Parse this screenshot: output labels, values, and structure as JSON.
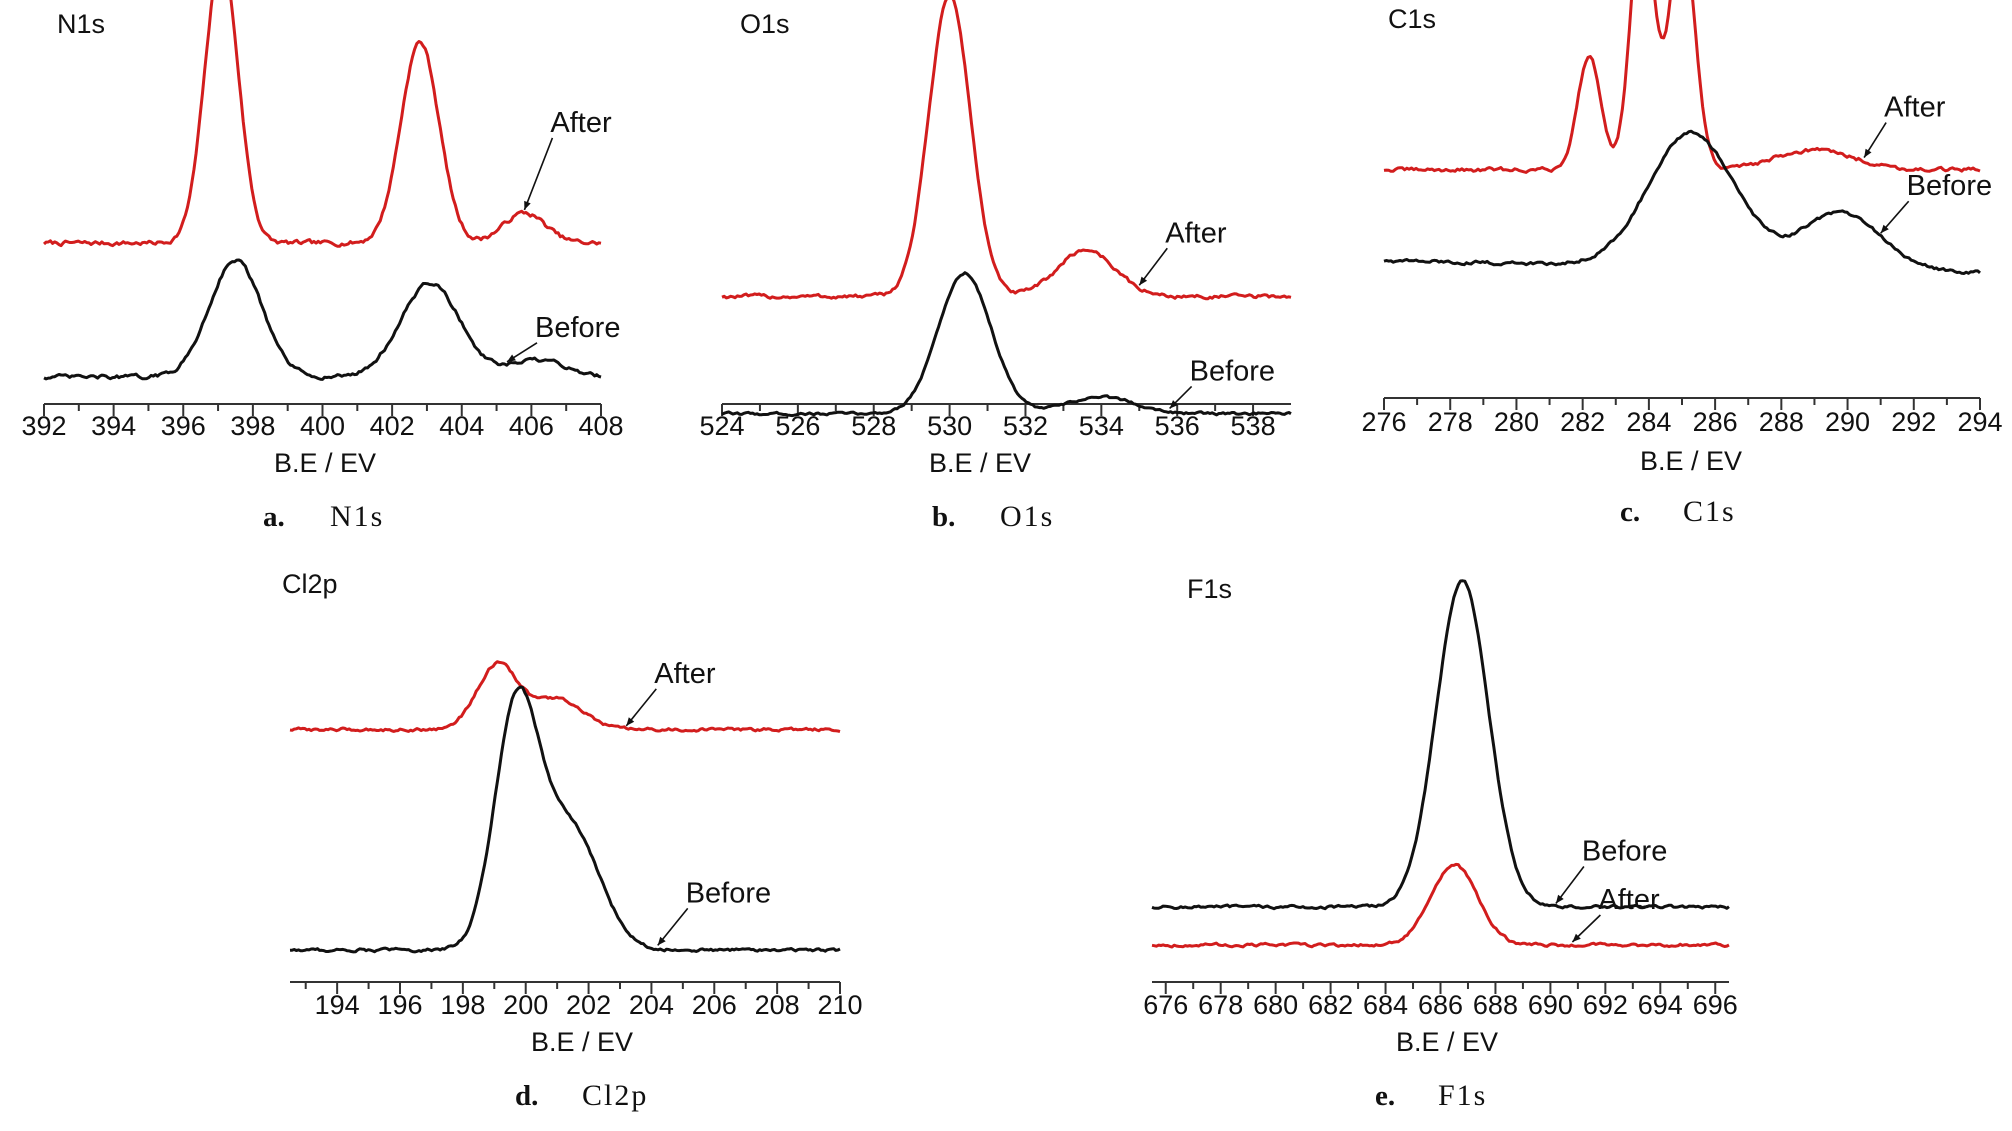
{
  "colors": {
    "after": "#d21d1d",
    "before": "#111111",
    "axis": "#333333"
  },
  "chart_data": [
    {
      "id": "a",
      "type": "line",
      "title": "N1s",
      "caption_letter": "a.",
      "caption_name": "N1s",
      "xlabel": "B.E / EV",
      "ylabel": "",
      "xlim": [
        392,
        408
      ],
      "xticks": [
        "392",
        "394",
        "396",
        "398",
        "400",
        "402",
        "404",
        "406",
        "408"
      ],
      "series": [
        {
          "name": "After",
          "color": "#d21d1d",
          "baseline": 0.17,
          "slope": 0.0,
          "peaks": [
            [
              397.1,
              0.85,
              0.48
            ],
            [
              402.8,
              0.6,
              0.55
            ],
            [
              405.8,
              0.09,
              0.6
            ]
          ],
          "noise": 0.007
        },
        {
          "name": "Before",
          "color": "#111111",
          "baseline": -0.23,
          "slope": 0.0,
          "peaks": [
            [
              397.5,
              0.35,
              0.75
            ],
            [
              403.1,
              0.28,
              0.85
            ],
            [
              406.2,
              0.05,
              0.8
            ]
          ],
          "noise": 0.006
        }
      ],
      "annotations": [
        {
          "text": "After",
          "series": "After",
          "at_x": 405.8
        },
        {
          "text": "Before",
          "series": "Before",
          "at_x": 405.3
        }
      ]
    },
    {
      "id": "b",
      "type": "line",
      "title": "O1s",
      "caption_letter": "b.",
      "caption_name": "O1s",
      "xlabel": "B.E / EV",
      "ylabel": "",
      "xlim": [
        524,
        539
      ],
      "xticks": [
        "524",
        "526",
        "528",
        "530",
        "532",
        "534",
        "536",
        "538"
      ],
      "series": [
        {
          "name": "After",
          "color": "#d21d1d",
          "baseline": 0.1,
          "slope": 0.0,
          "peaks": [
            [
              530.0,
              0.9,
              0.55
            ],
            [
              533.6,
              0.14,
              0.75
            ]
          ],
          "noise": 0.006
        },
        {
          "name": "Before",
          "color": "#111111",
          "baseline": -0.25,
          "slope": 0.0,
          "peaks": [
            [
              530.4,
              0.42,
              0.7
            ],
            [
              534.0,
              0.05,
              0.9
            ]
          ],
          "noise": 0.004
        }
      ],
      "annotations": [
        {
          "text": "After",
          "series": "After",
          "at_x": 535.0
        },
        {
          "text": "Before",
          "series": "Before",
          "at_x": 535.8
        }
      ]
    },
    {
      "id": "c",
      "type": "line",
      "title": "C1s",
      "caption_letter": "c.",
      "caption_name": "C1s",
      "xlabel": "B.E / EV",
      "ylabel": "",
      "xlim": [
        276,
        294
      ],
      "xticks": [
        "276",
        "278",
        "280",
        "282",
        "284",
        "286",
        "288",
        "290",
        "292",
        "294"
      ],
      "series": [
        {
          "name": "After",
          "color": "#d21d1d",
          "baseline": 0.12,
          "slope": 0.0,
          "peaks": [
            [
              282.2,
              0.34,
              0.35
            ],
            [
              283.8,
              0.78,
              0.35
            ],
            [
              285.0,
              0.72,
              0.38
            ],
            [
              289.0,
              0.06,
              1.2
            ]
          ],
          "noise": 0.006
        },
        {
          "name": "Before",
          "color": "#111111",
          "baseline": -0.17,
          "slope": -0.002,
          "peaks": [
            [
              285.3,
              0.4,
              1.3
            ],
            [
              289.8,
              0.17,
              1.2
            ]
          ],
          "noise": 0.005
        }
      ],
      "annotations": [
        {
          "text": "After",
          "series": "After",
          "at_x": 290.5
        },
        {
          "text": "Before",
          "series": "Before",
          "at_x": 291.0
        }
      ]
    },
    {
      "id": "d",
      "type": "line",
      "title": "Cl2p",
      "caption_letter": "d.",
      "caption_name": "Cl2p",
      "xlabel": "B.E / EV",
      "ylabel": "",
      "xlim": [
        192.5,
        210
      ],
      "xticks": [
        "194",
        "196",
        "198",
        "200",
        "202",
        "204",
        "206",
        "208",
        "210"
      ],
      "series": [
        {
          "name": "After",
          "color": "#d21d1d",
          "baseline": 0.58,
          "slope": 0.0,
          "peaks": [
            [
              199.1,
              0.17,
              0.65
            ],
            [
              201.0,
              0.08,
              0.8
            ]
          ],
          "noise": 0.004
        },
        {
          "name": "Before",
          "color": "#111111",
          "baseline": 0.0,
          "slope": 0.0,
          "peaks": [
            [
              199.7,
              0.62,
              0.7
            ],
            [
              201.4,
              0.32,
              0.95
            ]
          ],
          "noise": 0.004
        }
      ],
      "annotations": [
        {
          "text": "After",
          "series": "After",
          "at_x": 203.2
        },
        {
          "text": "Before",
          "series": "Before",
          "at_x": 204.2
        }
      ]
    },
    {
      "id": "e",
      "type": "line",
      "title": "F1s",
      "caption_letter": "e.",
      "caption_name": "F1s",
      "xlabel": "B.E / EV",
      "ylabel": "",
      "xlim": [
        675.5,
        696.5
      ],
      "xticks": [
        "676",
        "678",
        "680",
        "682",
        "684",
        "686",
        "688",
        "690",
        "692",
        "694",
        "696"
      ],
      "series": [
        {
          "name": "Before",
          "color": "#111111",
          "baseline": 0.1,
          "slope": 0.0,
          "peaks": [
            [
              686.8,
              0.86,
              0.95
            ]
          ],
          "noise": 0.004
        },
        {
          "name": "After",
          "color": "#d21d1d",
          "baseline": 0.0,
          "slope": 0.0,
          "peaks": [
            [
              686.5,
              0.21,
              0.85
            ]
          ],
          "noise": 0.004
        }
      ],
      "annotations": [
        {
          "text": "Before",
          "series": "Before",
          "at_x": 690.2
        },
        {
          "text": "After",
          "series": "After",
          "at_x": 690.8
        }
      ]
    }
  ]
}
